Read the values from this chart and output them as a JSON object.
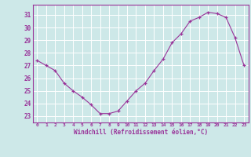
{
  "x": [
    0,
    1,
    2,
    3,
    4,
    5,
    6,
    7,
    8,
    9,
    10,
    11,
    12,
    13,
    14,
    15,
    16,
    17,
    18,
    19,
    20,
    21,
    22,
    23
  ],
  "y": [
    27.4,
    27.0,
    26.6,
    25.6,
    25.0,
    24.5,
    23.9,
    23.2,
    23.2,
    23.4,
    24.2,
    25.0,
    25.6,
    26.6,
    27.5,
    28.8,
    29.5,
    30.5,
    30.8,
    31.2,
    31.1,
    30.8,
    29.2,
    27.0
  ],
  "x_labels": [
    "0",
    "1",
    "2",
    "3",
    "4",
    "5",
    "6",
    "7",
    "8",
    "9",
    "10",
    "11",
    "12",
    "13",
    "14",
    "15",
    "16",
    "17",
    "18",
    "19",
    "20",
    "21",
    "22",
    "23"
  ],
  "y_ticks": [
    23,
    24,
    25,
    26,
    27,
    28,
    29,
    30,
    31
  ],
  "ylim": [
    22.5,
    31.8
  ],
  "xlim": [
    -0.5,
    23.5
  ],
  "line_color": "#993399",
  "marker_color": "#993399",
  "bg_color": "#cde8e8",
  "grid_color": "#b0d8d8",
  "xlabel": "Windchill (Refroidissement éolien,°C)",
  "xlabel_color": "#993399",
  "tick_color": "#993399",
  "axis_line_color": "#993399"
}
